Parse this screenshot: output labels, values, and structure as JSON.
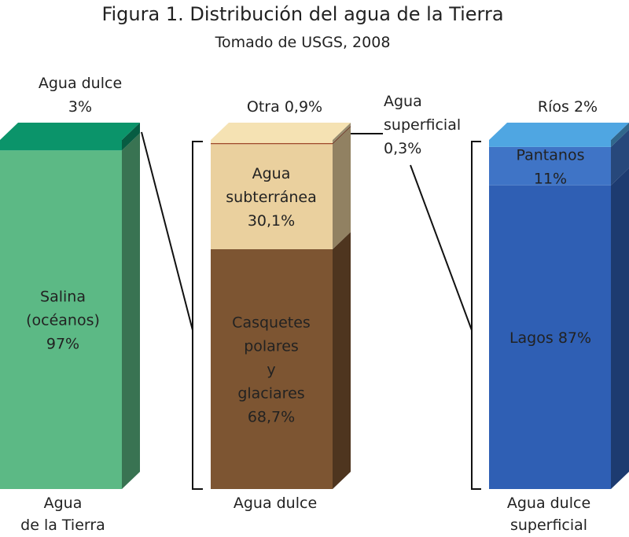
{
  "title": "Figura 1. Distribución del agua de la Tierra",
  "subtitle": "Tomado de USGS, 2008",
  "chart_data": [
    {
      "type": "stacked-column",
      "category": [
        "Agua",
        "de la Tierra"
      ],
      "series": [
        {
          "name": [
            "Salina",
            "(océanos)"
          ],
          "color": "#5cb985",
          "values": [
            97
          ],
          "value_labels": [
            "97%"
          ]
        },
        {
          "name": [
            "Agua dulce"
          ],
          "color": "#0b946a",
          "values": [
            3
          ],
          "value_labels": [
            "3%"
          ]
        }
      ]
    },
    {
      "type": "stacked-column",
      "category": [
        "Agua dulce"
      ],
      "series": [
        {
          "name": [
            "Casquetes",
            "polares",
            "y",
            "glaciares"
          ],
          "color": "#7d5532",
          "values": [
            68.7
          ],
          "value_labels": [
            "68,7%"
          ]
        },
        {
          "name": [
            "Agua",
            "subterránea"
          ],
          "color": "#ead09e",
          "values": [
            30.1
          ],
          "value_labels": [
            "30,1%"
          ]
        },
        {
          "name": [
            "Agua",
            "superficial"
          ],
          "color": "#a04a2a",
          "values": [
            0.3
          ],
          "value_labels": [
            "0,3%"
          ]
        },
        {
          "name": [
            "Otra"
          ],
          "color": "#f5e2b3",
          "values": [
            0.9
          ],
          "value_labels": [
            "0,9%"
          ]
        }
      ]
    },
    {
      "type": "stacked-column",
      "category": [
        "Agua dulce",
        "superficial"
      ],
      "series": [
        {
          "name": [
            "Lagos"
          ],
          "color": "#2f5fb4",
          "values": [
            87
          ],
          "value_labels": [
            "87%"
          ]
        },
        {
          "name": [
            "Pantanos"
          ],
          "color": "#3f74c6",
          "values": [
            11
          ],
          "value_labels": [
            "11%"
          ]
        },
        {
          "name": [
            "Ríos"
          ],
          "color": "#4fa6e2",
          "values": [
            2
          ],
          "value_labels": [
            "2%"
          ]
        }
      ]
    }
  ]
}
